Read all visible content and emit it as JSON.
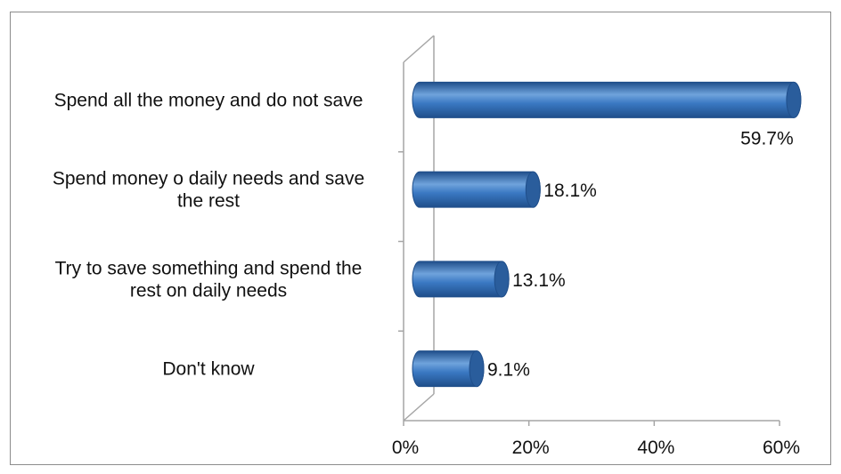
{
  "chart_data": {
    "type": "bar",
    "orientation": "horizontal",
    "style": "3d-cylinder",
    "categories": [
      [
        "Spend all the money and do not save"
      ],
      [
        "Spend money o daily needs and save",
        "the rest"
      ],
      [
        "Try to save something and spend the",
        "rest on daily needs"
      ],
      [
        "Don't know"
      ]
    ],
    "values": [
      59.7,
      18.1,
      13.1,
      9.1
    ],
    "value_labels": [
      "59.7%",
      "18.1%",
      "13.1%",
      "9.1%"
    ],
    "xlim": [
      0,
      60
    ],
    "xticks": [
      0,
      20,
      40,
      60
    ],
    "xtick_labels": [
      "0%",
      "20%",
      "40%",
      "60%"
    ],
    "grid": false,
    "legend": "none",
    "colors": {
      "bar_dark": "#1f4e8a",
      "bar_mid": "#3a78c2",
      "bar_light": "#6fa3dc",
      "bar_cap": "#2a5d9c",
      "axis": "#a6a6a6"
    }
  }
}
